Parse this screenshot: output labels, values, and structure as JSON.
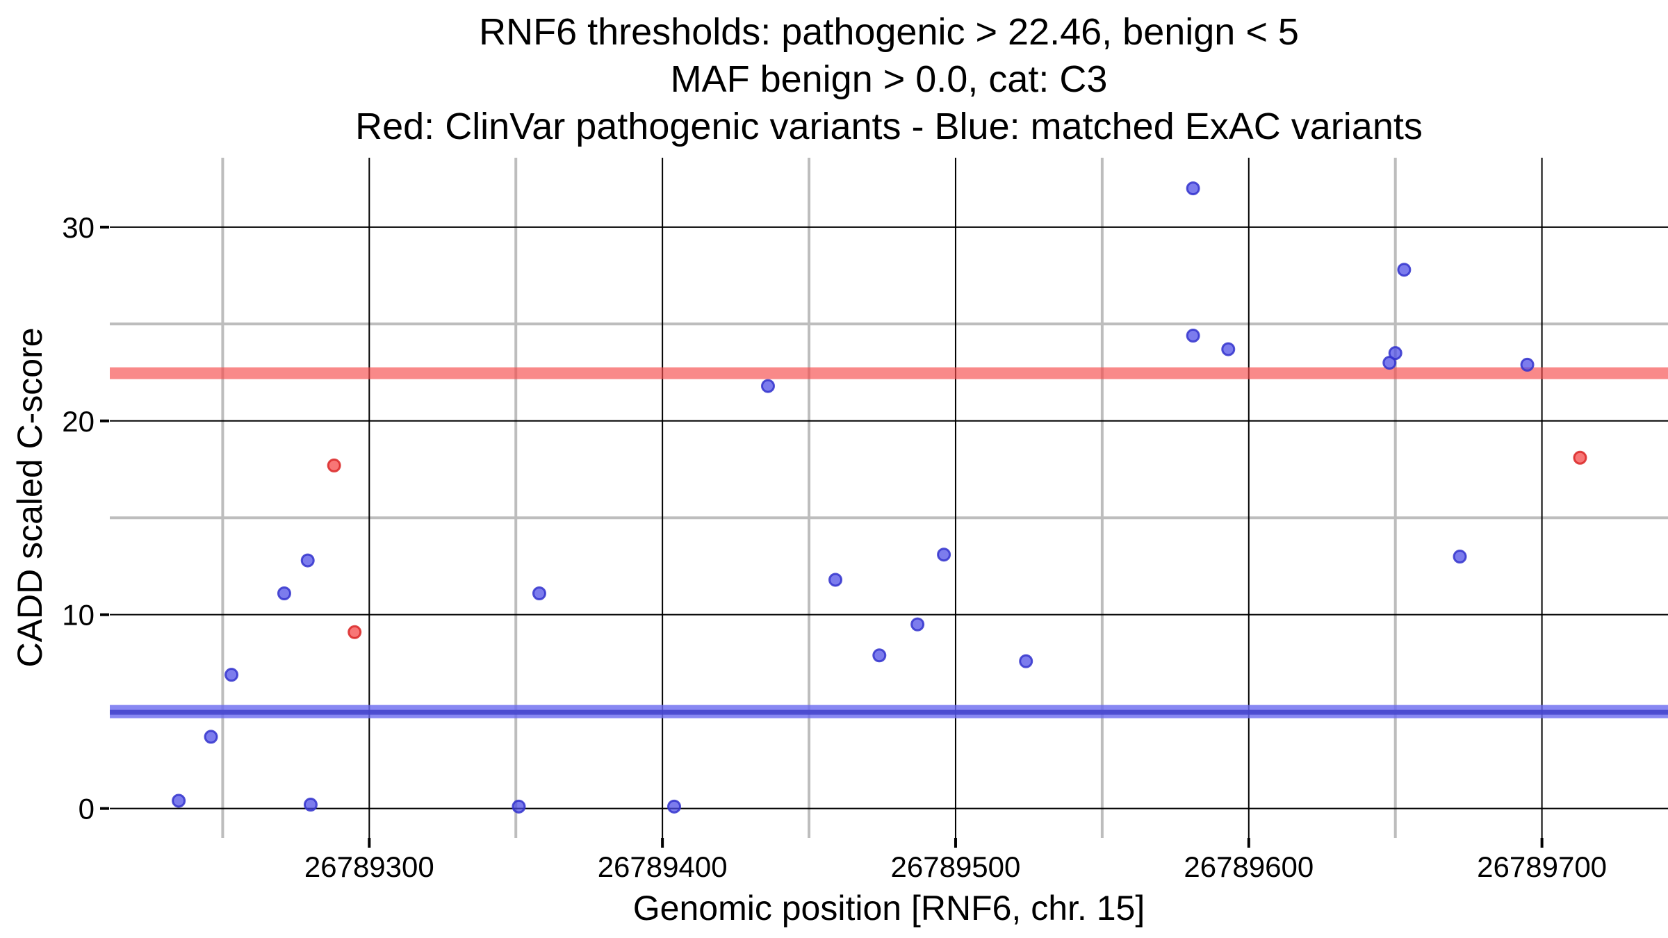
{
  "title": {
    "line1": "RNF6 thresholds: pathogenic > 22.46, benign < 5",
    "line2": "MAF benign > 0.0, cat: C3",
    "line3": "Red: ClinVar pathogenic variants - Blue: matched ExAC variants"
  },
  "colors": {
    "background": "#ffffff",
    "major_grid": "#000000",
    "minor_grid": "#bdbdbd",
    "tick_mark": "#000000",
    "pathogenic_line": "#f64c4c",
    "benign_line_outer": "#6a6aef",
    "benign_line_core": "#4444cc",
    "red_point_fill": "#f64f4f",
    "red_point_stroke": "#d92626",
    "blue_point_fill": "#4a4ae6",
    "blue_point_stroke": "#3333cc"
  },
  "chart_data": {
    "type": "scatter",
    "title_lines": [
      "RNF6 thresholds: pathogenic > 22.46, benign < 5",
      "MAF benign > 0.0, cat: C3",
      "Red: ClinVar pathogenic variants - Blue: matched ExAC variants"
    ],
    "xlabel": "Genomic position [RNF6, chr. 15]",
    "ylabel": "CADD scaled C-score",
    "xlim": [
      26789211.5,
      26789743
    ],
    "ylim": [
      -1.52,
      33.58
    ],
    "x_ticks": [
      26789300,
      26789400,
      26789500,
      26789600,
      26789700
    ],
    "x_tick_labels": [
      "26789300",
      "26789400",
      "26789500",
      "26789600",
      "26789700"
    ],
    "x_minor_ticks": [
      26789250,
      26789350,
      26789450,
      26789550,
      26789650
    ],
    "y_ticks": [
      0,
      10,
      20,
      30
    ],
    "y_tick_labels": [
      "0",
      "10",
      "20",
      "30"
    ],
    "y_minor_ticks": [
      5,
      15,
      25
    ],
    "grid": true,
    "legend": "none",
    "thresholds": {
      "pathogenic_gt": 22.46,
      "benign_lt": 5,
      "maf_benign_gt": 0.0,
      "category": "C3"
    },
    "series": [
      {
        "name": "ClinVar pathogenic variants",
        "color_key": "red",
        "points": [
          {
            "x": 26789288,
            "y": 17.7
          },
          {
            "x": 26789295,
            "y": 9.1
          },
          {
            "x": 26789713,
            "y": 18.1
          }
        ]
      },
      {
        "name": "matched ExAC variants",
        "color_key": "blue",
        "points": [
          {
            "x": 26789235,
            "y": 0.4
          },
          {
            "x": 26789246,
            "y": 3.7
          },
          {
            "x": 26789253,
            "y": 6.9
          },
          {
            "x": 26789271,
            "y": 11.1
          },
          {
            "x": 26789279,
            "y": 12.8
          },
          {
            "x": 26789280,
            "y": 0.2
          },
          {
            "x": 26789351,
            "y": 0.1
          },
          {
            "x": 26789358,
            "y": 11.1
          },
          {
            "x": 26789404,
            "y": 0.1
          },
          {
            "x": 26789436,
            "y": 21.8
          },
          {
            "x": 26789459,
            "y": 11.8
          },
          {
            "x": 26789474,
            "y": 7.9
          },
          {
            "x": 26789487,
            "y": 9.5
          },
          {
            "x": 26789496,
            "y": 13.1
          },
          {
            "x": 26789524,
            "y": 7.6
          },
          {
            "x": 26789581,
            "y": 32.0
          },
          {
            "x": 26789581,
            "y": 24.4
          },
          {
            "x": 26789593,
            "y": 23.7
          },
          {
            "x": 26789648,
            "y": 23.0
          },
          {
            "x": 26789650,
            "y": 23.5
          },
          {
            "x": 26789653,
            "y": 27.8
          },
          {
            "x": 26789672,
            "y": 13.0
          },
          {
            "x": 26789695,
            "y": 22.9
          }
        ]
      }
    ]
  }
}
